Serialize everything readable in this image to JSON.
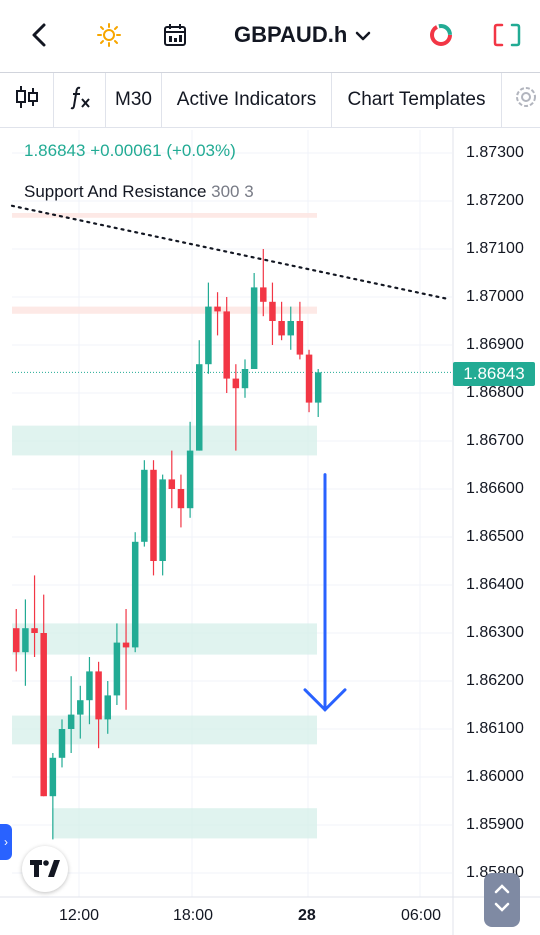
{
  "header": {
    "symbol": "GBPAUD.h",
    "icons": [
      "back-arrow-icon",
      "sun-icon",
      "calendar-icon",
      "chevron-down-icon",
      "trading-ring-icon",
      "fullscreen-icon"
    ]
  },
  "toolbar": {
    "timeframe": "M30",
    "indicators_label": "Active Indicators",
    "templates_label": "Chart Templates"
  },
  "legend": {
    "price": "1.86843",
    "change": "+0.00061",
    "change_pct": "(+0.03%)",
    "indicator_name": "Support And Resistance",
    "indicator_params": "300 3"
  },
  "axis": {
    "y_ticks": [
      "1.87300",
      "1.87200",
      "1.87100",
      "1.87000",
      "1.86900",
      "1.86800",
      "1.86700",
      "1.86600",
      "1.86500",
      "1.86400",
      "1.86300",
      "1.86200",
      "1.86100",
      "1.86000",
      "1.85900",
      "1.85800"
    ],
    "x_ticks": [
      "12:00",
      "18:00",
      "28",
      "06:00"
    ],
    "last_price": "1.86843"
  },
  "colors": {
    "up": "#22ab94",
    "down": "#f23645",
    "accent": "#2962ff",
    "zone_green": "#d5efe9",
    "zone_red": "#fde3e0"
  },
  "candles": [
    {
      "o": 1.8631,
      "h": 1.8635,
      "l": 1.8622,
      "c": 1.8626
    },
    {
      "o": 1.8626,
      "h": 1.8637,
      "l": 1.8619,
      "c": 1.8631
    },
    {
      "o": 1.8631,
      "h": 1.8642,
      "l": 1.8625,
      "c": 1.863
    },
    {
      "o": 1.863,
      "h": 1.8638,
      "l": 1.8596,
      "c": 1.8596
    },
    {
      "o": 1.8596,
      "h": 1.8605,
      "l": 1.8587,
      "c": 1.8604
    },
    {
      "o": 1.8604,
      "h": 1.8612,
      "l": 1.8602,
      "c": 1.861
    },
    {
      "o": 1.861,
      "h": 1.8621,
      "l": 1.8605,
      "c": 1.8613
    },
    {
      "o": 1.8613,
      "h": 1.8619,
      "l": 1.8608,
      "c": 1.8616
    },
    {
      "o": 1.8616,
      "h": 1.8625,
      "l": 1.8611,
      "c": 1.8622
    },
    {
      "o": 1.8622,
      "h": 1.8624,
      "l": 1.8606,
      "c": 1.8612
    },
    {
      "o": 1.8612,
      "h": 1.862,
      "l": 1.8609,
      "c": 1.8617
    },
    {
      "o": 1.8617,
      "h": 1.8632,
      "l": 1.8615,
      "c": 1.8628
    },
    {
      "o": 1.8628,
      "h": 1.8635,
      "l": 1.8614,
      "c": 1.8627
    },
    {
      "o": 1.8627,
      "h": 1.8651,
      "l": 1.8626,
      "c": 1.8649
    },
    {
      "o": 1.8649,
      "h": 1.8666,
      "l": 1.8648,
      "c": 1.8664
    },
    {
      "o": 1.8664,
      "h": 1.8666,
      "l": 1.8642,
      "c": 1.8645
    },
    {
      "o": 1.8645,
      "h": 1.8663,
      "l": 1.8642,
      "c": 1.8662
    },
    {
      "o": 1.8662,
      "h": 1.8668,
      "l": 1.8656,
      "c": 1.866
    },
    {
      "o": 1.866,
      "h": 1.8663,
      "l": 1.8652,
      "c": 1.8656
    },
    {
      "o": 1.8656,
      "h": 1.8674,
      "l": 1.8654,
      "c": 1.8668
    },
    {
      "o": 1.8668,
      "h": 1.8691,
      "l": 1.8668,
      "c": 1.8686
    },
    {
      "o": 1.8686,
      "h": 1.8703,
      "l": 1.8684,
      "c": 1.8698
    },
    {
      "o": 1.8698,
      "h": 1.8701,
      "l": 1.8692,
      "c": 1.8697
    },
    {
      "o": 1.8697,
      "h": 1.87,
      "l": 1.868,
      "c": 1.8683
    },
    {
      "o": 1.8683,
      "h": 1.8686,
      "l": 1.8668,
      "c": 1.8681
    },
    {
      "o": 1.8681,
      "h": 1.8687,
      "l": 1.8679,
      "c": 1.8685
    },
    {
      "o": 1.8685,
      "h": 1.8705,
      "l": 1.8685,
      "c": 1.8702
    },
    {
      "o": 1.8702,
      "h": 1.871,
      "l": 1.8696,
      "c": 1.8699
    },
    {
      "o": 1.8699,
      "h": 1.8703,
      "l": 1.869,
      "c": 1.8695
    },
    {
      "o": 1.8695,
      "h": 1.8699,
      "l": 1.8691,
      "c": 1.8692
    },
    {
      "o": 1.8692,
      "h": 1.8698,
      "l": 1.8689,
      "c": 1.8695
    },
    {
      "o": 1.8695,
      "h": 1.8699,
      "l": 1.8687,
      "c": 1.8688
    },
    {
      "o": 1.8688,
      "h": 1.8689,
      "l": 1.8676,
      "c": 1.8678
    },
    {
      "o": 1.8678,
      "h": 1.8685,
      "l": 1.8675,
      "c": 1.86843
    }
  ],
  "zones": [
    {
      "kind": "resistance",
      "top": 1.87175,
      "bottom": 1.87165
    },
    {
      "kind": "resistance",
      "top": 1.8698,
      "bottom": 1.86965
    },
    {
      "kind": "support",
      "top": 1.86732,
      "bottom": 1.8667
    },
    {
      "kind": "support",
      "top": 1.8632,
      "bottom": 1.86255
    },
    {
      "kind": "support",
      "top": 1.86128,
      "bottom": 1.86068
    },
    {
      "kind": "support",
      "top": 1.85935,
      "bottom": 1.85872
    }
  ],
  "trendline": {
    "from": 1.8719,
    "to": 1.86995
  },
  "arrow": {
    "direction": "down",
    "from": 1.8663,
    "to": 1.8614
  }
}
